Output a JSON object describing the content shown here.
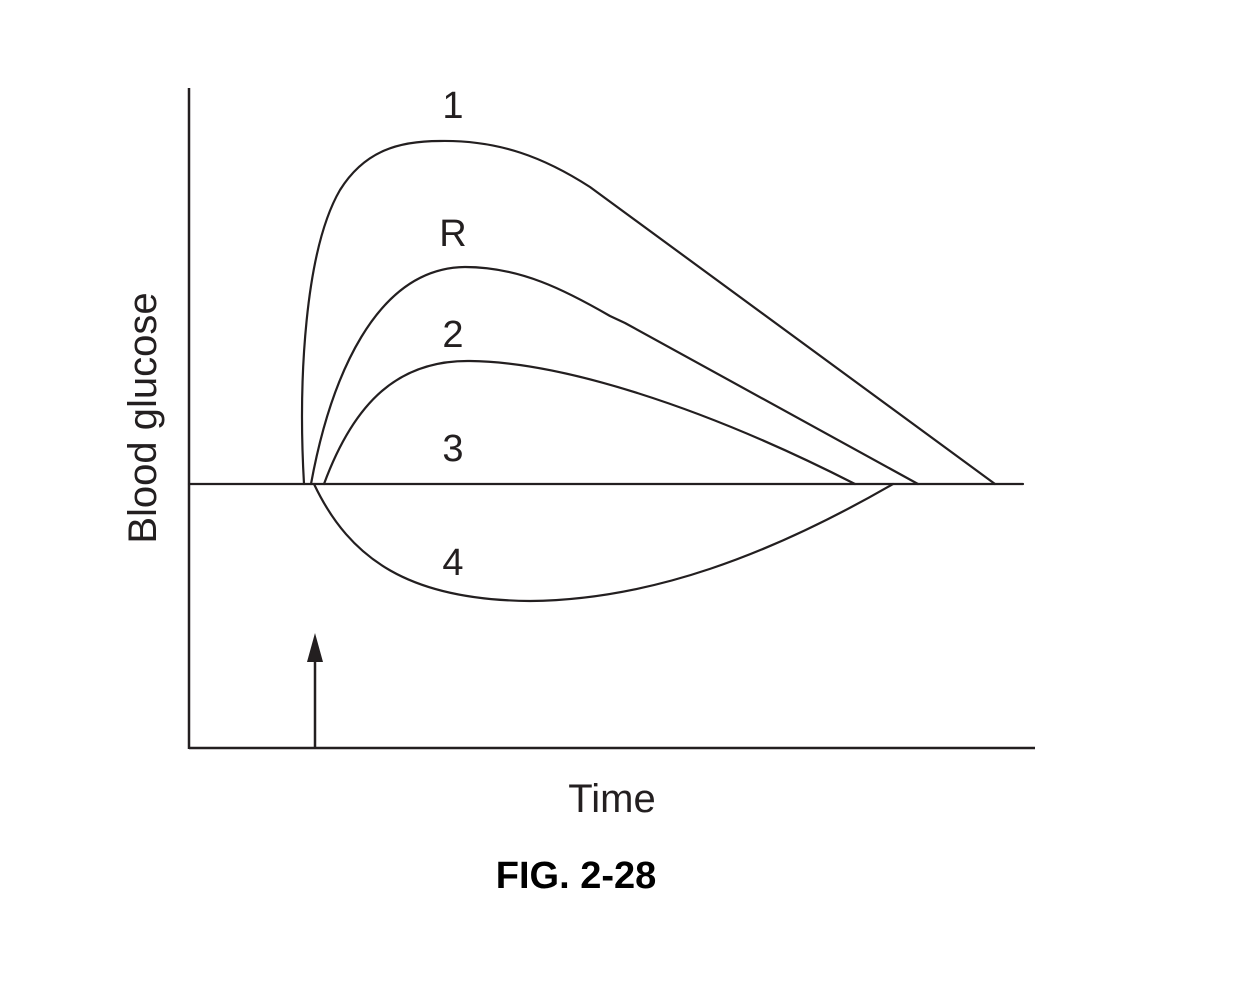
{
  "figure": {
    "caption": "FIG. 2-28"
  },
  "chart_data": {
    "type": "line",
    "xlabel": "Time",
    "ylabel": "Blood glucose",
    "baseline_label": "3",
    "arrow_marker": "administration point (arrow on time axis)",
    "series": [
      {
        "name": "1",
        "shape": "tallest rise, then long decline back to baseline"
      },
      {
        "name": "R",
        "shape": "intermediate rise, then decline back to baseline"
      },
      {
        "name": "2",
        "shape": "smaller rise, earliest return to baseline"
      },
      {
        "name": "3",
        "shape": "flat at baseline"
      },
      {
        "name": "4",
        "shape": "dip below baseline, then recovery"
      }
    ],
    "grid": false,
    "ticks": false
  }
}
